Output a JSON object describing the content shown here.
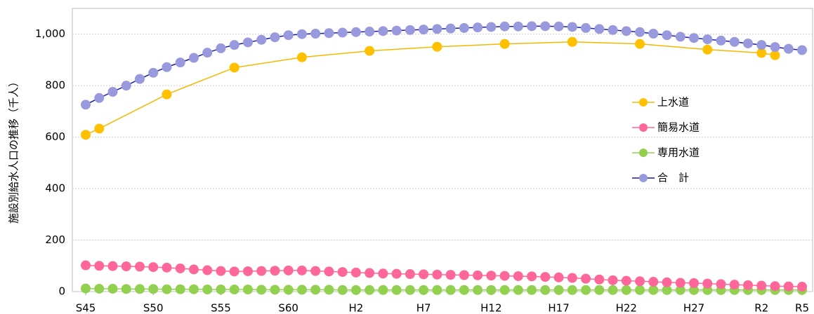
{
  "chart_data": {
    "type": "line",
    "y_label": "施設別給水人口の推移（千人）",
    "categories": [
      "S45",
      null,
      null,
      null,
      null,
      "S50",
      null,
      null,
      null,
      null,
      "S55",
      null,
      null,
      null,
      null,
      "S60",
      null,
      null,
      null,
      null,
      "H2",
      null,
      null,
      null,
      null,
      "H7",
      null,
      null,
      null,
      null,
      "H12",
      null,
      null,
      null,
      null,
      "H17",
      null,
      null,
      null,
      null,
      "H22",
      null,
      null,
      null,
      null,
      "H27",
      null,
      null,
      null,
      null,
      "R2",
      null,
      null,
      "R5"
    ],
    "ylim": [
      0,
      1100
    ],
    "yticks": [
      0,
      200,
      400,
      600,
      800,
      {
        "value": 1000,
        "label": "1,000"
      }
    ],
    "grid": true,
    "connect_gaps": true,
    "legend": "right",
    "series": [
      {
        "name": "上水道",
        "color": "#f5b800",
        "marker_color": "#ffc000",
        "values": [
          609,
          633,
          null,
          null,
          null,
          null,
          766,
          null,
          null,
          null,
          null,
          870,
          null,
          null,
          null,
          null,
          910,
          null,
          null,
          null,
          null,
          935,
          null,
          null,
          null,
          null,
          951,
          null,
          null,
          null,
          null,
          962,
          null,
          null,
          null,
          null,
          970,
          null,
          null,
          null,
          null,
          962,
          null,
          null,
          null,
          null,
          940,
          null,
          null,
          null,
          927,
          918,
          null,
          null
        ]
      },
      {
        "name": "簡易水道",
        "color": "#ff6699",
        "marker_color": "#ff6699",
        "values": [
          102,
          100,
          99,
          98,
          97,
          95,
          93,
          90,
          86,
          83,
          80,
          78,
          79,
          80,
          81,
          82,
          82,
          80,
          78,
          76,
          74,
          72,
          70,
          69,
          68,
          67,
          66,
          65,
          64,
          63,
          62,
          61,
          60,
          59,
          57,
          55,
          53,
          50,
          47,
          44,
          42,
          40,
          38,
          36,
          34,
          33,
          31,
          29,
          27,
          25,
          23,
          21,
          20,
          19
        ]
      },
      {
        "name": "専用水道",
        "color": "#92d050",
        "marker_color": "#92d050",
        "values": [
          12,
          11,
          11,
          10,
          10,
          10,
          9,
          9,
          9,
          8,
          8,
          8,
          8,
          7,
          7,
          7,
          7,
          7,
          7,
          6,
          6,
          6,
          6,
          6,
          6,
          6,
          6,
          6,
          6,
          6,
          6,
          6,
          6,
          6,
          6,
          6,
          6,
          6,
          6,
          6,
          6,
          6,
          6,
          6,
          6,
          6,
          6,
          6,
          6,
          6,
          6,
          6,
          6,
          6
        ]
      },
      {
        "name": "合　計",
        "color": "#1a1a9c",
        "marker_color": "#9999dd",
        "values": [
          726,
          752,
          776,
          800,
          826,
          850,
          872,
          890,
          908,
          928,
          945,
          958,
          968,
          978,
          988,
          996,
          1000,
          1002,
          1004,
          1006,
          1008,
          1010,
          1012,
          1014,
          1016,
          1018,
          1020,
          1022,
          1024,
          1026,
          1028,
          1030,
          1030,
          1031,
          1031,
          1030,
          1028,
          1024,
          1020,
          1016,
          1012,
          1008,
          1002,
          996,
          990,
          985,
          980,
          975,
          970,
          964,
          958,
          950,
          943,
          938
        ]
      }
    ]
  }
}
